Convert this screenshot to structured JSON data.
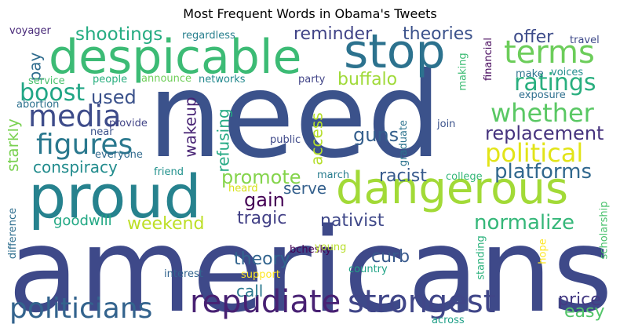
{
  "chart_data": {
    "type": "wordcloud",
    "title": "Most Frequent Words in Obama's Tweets",
    "words": [
      {
        "text": "americans",
        "color": "#3e4989"
      },
      {
        "text": "need",
        "color": "#3b528b"
      },
      {
        "text": "proud",
        "color": "#26828e"
      },
      {
        "text": "despicable",
        "color": "#3cbb75"
      },
      {
        "text": "stop",
        "color": "#2c728e"
      },
      {
        "text": "dangerous",
        "color": "#a2da37"
      },
      {
        "text": "repudiate",
        "color": "#482173"
      },
      {
        "text": "strongest",
        "color": "#404688"
      },
      {
        "text": "politicians",
        "color": "#33638d"
      },
      {
        "text": "terms",
        "color": "#6ccd5a"
      },
      {
        "text": "media",
        "color": "#3e4c8a"
      },
      {
        "text": "whether",
        "color": "#5ac864"
      },
      {
        "text": "figures",
        "color": "#2a788e"
      },
      {
        "text": "ratings",
        "color": "#29af7f"
      },
      {
        "text": "boost",
        "color": "#21a685"
      },
      {
        "text": "political",
        "color": "#e2e418"
      },
      {
        "text": "replacement",
        "color": "#46337e"
      },
      {
        "text": "platforms",
        "color": "#31688e"
      },
      {
        "text": "normalize",
        "color": "#35b779"
      },
      {
        "text": "promote",
        "color": "#84d44b"
      },
      {
        "text": "buffalo",
        "color": "#a0da39"
      },
      {
        "text": "shootings",
        "color": "#25ac82"
      },
      {
        "text": "reminder",
        "color": "#414487"
      },
      {
        "text": "theories",
        "color": "#3b528b"
      },
      {
        "text": "offer",
        "color": "#3e4c8a"
      },
      {
        "text": "used",
        "color": "#3b528b"
      },
      {
        "text": "gain",
        "color": "#440154"
      },
      {
        "text": "guns",
        "color": "#355f8d"
      },
      {
        "text": "racist",
        "color": "#375a8c"
      },
      {
        "text": "conspiracy",
        "color": "#228c8d"
      },
      {
        "text": "weekend",
        "color": "#bddf26"
      },
      {
        "text": "goodwill",
        "color": "#22a884"
      },
      {
        "text": "tragic",
        "color": "#424086"
      },
      {
        "text": "nativist",
        "color": "#3f4889"
      },
      {
        "text": "serve",
        "color": "#34608d"
      },
      {
        "text": "theory",
        "color": "#32648e"
      },
      {
        "text": "curb",
        "color": "#38598c"
      },
      {
        "text": "call",
        "color": "#2a788e"
      },
      {
        "text": "price",
        "color": "#443a83"
      },
      {
        "text": "easy",
        "color": "#52c569"
      },
      {
        "text": "access",
        "color": "#b5de2b"
      },
      {
        "text": "refusing",
        "color": "#23a983"
      },
      {
        "text": "wakeup",
        "color": "#482475"
      },
      {
        "text": "starkly",
        "color": "#7ad151"
      },
      {
        "text": "pay",
        "color": "#2f6c8e"
      },
      {
        "text": "voyager",
        "color": "#482979"
      },
      {
        "text": "regardless",
        "color": "#277f8e"
      },
      {
        "text": "travel",
        "color": "#3e4989"
      },
      {
        "text": "voices",
        "color": "#228c8d"
      },
      {
        "text": "make",
        "color": "#2c728e"
      },
      {
        "text": "exposure",
        "color": "#2e6f8e"
      },
      {
        "text": "financial",
        "color": "#46085c"
      },
      {
        "text": "making",
        "color": "#3dbc74"
      },
      {
        "text": "party",
        "color": "#414487"
      },
      {
        "text": "networks",
        "color": "#23898e"
      },
      {
        "text": "announce",
        "color": "#6ece58"
      },
      {
        "text": "people",
        "color": "#29af7f"
      },
      {
        "text": "service",
        "color": "#4ac16d"
      },
      {
        "text": "abortion",
        "color": "#2d718e"
      },
      {
        "text": "provide",
        "color": "#414487"
      },
      {
        "text": "near",
        "color": "#3b528b"
      },
      {
        "text": "everyone",
        "color": "#306a8e"
      },
      {
        "text": "friend",
        "color": "#21918c"
      },
      {
        "text": "public",
        "color": "#3e4989"
      },
      {
        "text": "join",
        "color": "#3b528b"
      },
      {
        "text": "graduate",
        "color": "#2c738e"
      },
      {
        "text": "march",
        "color": "#287c8e"
      },
      {
        "text": "college",
        "color": "#35b779"
      },
      {
        "text": "heard",
        "color": "#d8e219"
      },
      {
        "text": "difference",
        "color": "#2e6e8e"
      },
      {
        "text": "hope",
        "color": "#fde725"
      },
      {
        "text": "scholarship",
        "color": "#4ac16d"
      },
      {
        "text": "standing",
        "color": "#2db27d"
      },
      {
        "text": "bchesky",
        "color": "#440154"
      },
      {
        "text": "young",
        "color": "#b8de29"
      },
      {
        "text": "interest",
        "color": "#32648e"
      },
      {
        "text": "support",
        "color": "#fde725"
      },
      {
        "text": "country",
        "color": "#20a386"
      },
      {
        "text": "across",
        "color": "#1fa088"
      }
    ]
  }
}
